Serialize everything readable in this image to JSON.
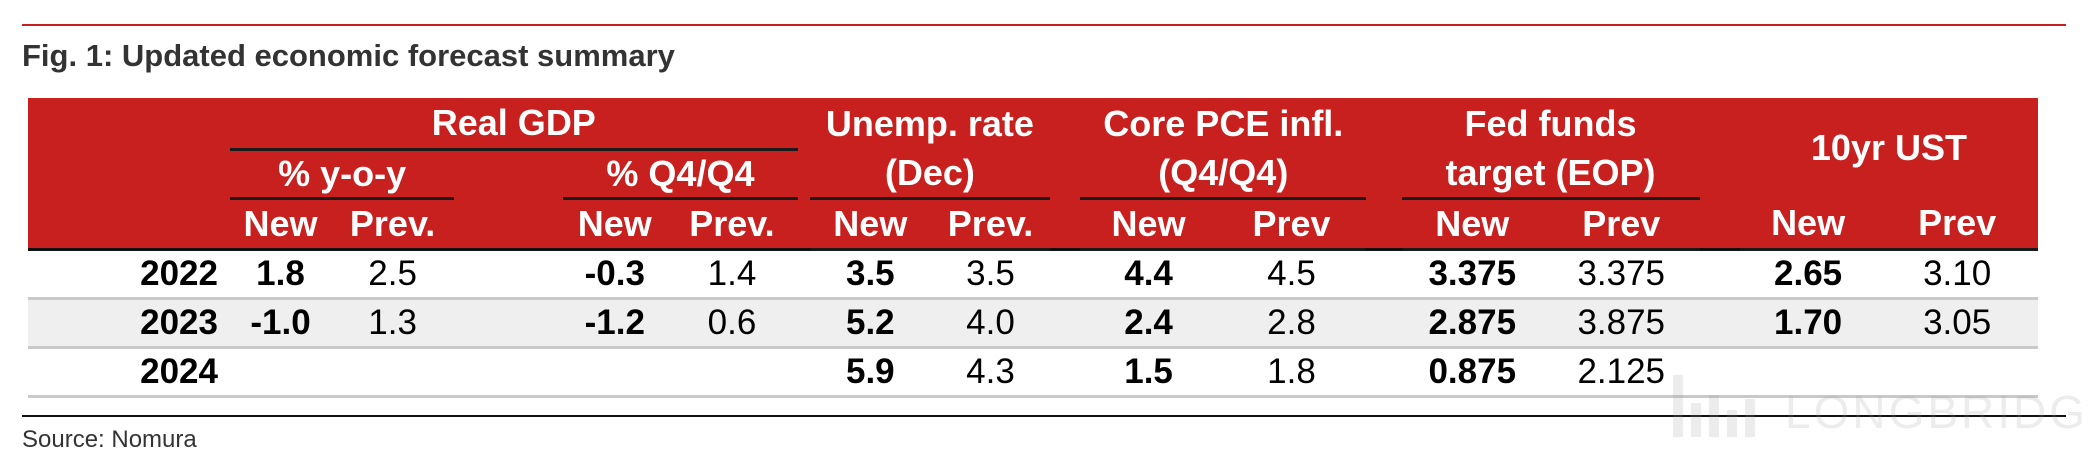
{
  "figure": {
    "title": "Fig. 1: Updated economic forecast summary",
    "source": "Source: Nomura"
  },
  "header": {
    "real_gdp": "Real GDP",
    "yoy": "% y-o-y",
    "q4q4": "% Q4/Q4",
    "unemp_line1": "Unemp. rate",
    "unemp_line2": "(Dec)",
    "pce_line1": "Core PCE infl.",
    "pce_line2": "(Q4/Q4)",
    "fed_line1": "Fed funds",
    "fed_line2": "target (EOP)",
    "ust": "10yr UST",
    "sub": [
      "New",
      "Prev.",
      "New",
      "Prev.",
      "New",
      "Prev.",
      "New",
      "Prev",
      "New",
      "Prev",
      "New",
      "Prev"
    ]
  },
  "rows": [
    {
      "year": "2022",
      "cells": [
        "1.8",
        "2.5",
        "-0.3",
        "1.4",
        "3.5",
        "3.5",
        "4.4",
        "4.5",
        "3.375",
        "3.375",
        "2.65",
        "3.10"
      ]
    },
    {
      "year": "2023",
      "cells": [
        "-1.0",
        "1.3",
        "-1.2",
        "0.6",
        "5.2",
        "4.0",
        "2.4",
        "2.8",
        "2.875",
        "3.875",
        "1.70",
        "3.05"
      ]
    },
    {
      "year": "2024",
      "cells": [
        "",
        "",
        "",
        "",
        "5.9",
        "4.3",
        "1.5",
        "1.8",
        "0.875",
        "2.125",
        "",
        ""
      ]
    }
  ],
  "watermark": {
    "text": "LONGBRIDGE"
  }
}
